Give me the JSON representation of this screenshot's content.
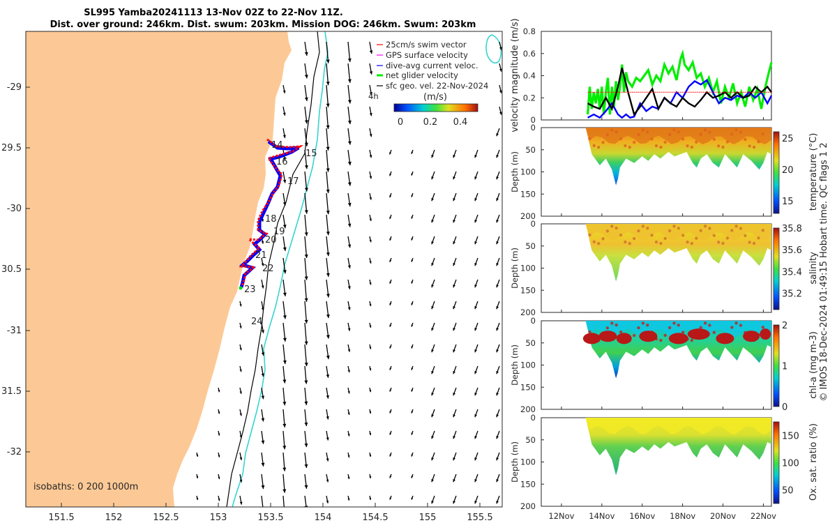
{
  "title_line1": "SL995 Yamba20241113 13-Nov 02Z to 22-Nov 11Z.",
  "title_line2": "Dist. over ground: 246km. Dist. swum: 203km. Mission DOG: 246km. Swum: 203km",
  "side_text": "© IMOS 18-Dec-2024 01:49:15 Hobart time. QC flags 1  2",
  "map": {
    "lon_ticks": [
      "151.5",
      "152",
      "152.5",
      "153",
      "153.5",
      "154",
      "154.5",
      "155",
      "155.5"
    ],
    "lat_ticks": [
      "-29",
      "29.5",
      "-30",
      "30.5",
      "-31",
      "31.5",
      "-32"
    ],
    "isobaths_label": "isobaths: 0   200  1000m",
    "day_labels": [
      "14",
      "15",
      "16",
      "17",
      "18",
      "19",
      "20",
      "21",
      "22",
      "23",
      "24"
    ],
    "legend": {
      "swim": "25cm/s swim vector",
      "gps": "GPS surface velocity",
      "dive": "dive-avg current veloc.",
      "net": "net glider velocity",
      "sfc": "sfc geo. vel. 22-Nov-2024",
      "sfc_extra": "4h"
    },
    "colorbar": {
      "label": "(m/s)",
      "ticks": [
        "0",
        "0.2",
        "0.4"
      ]
    },
    "colors": {
      "land": "#fcc996",
      "contour0": "#000000",
      "contour1000": "#35d4d2",
      "track_red": "#ff0000",
      "track_blue": "#0000ff",
      "track_green": "#00cc00"
    }
  },
  "chart_data": [
    {
      "type": "line",
      "name": "velocity",
      "ylabel": "velocity magnitude (m/s)",
      "ylim": [
        0,
        0.8
      ],
      "yticks": [
        "0",
        "0.2",
        "0.4",
        "0.6",
        "0.8"
      ],
      "xlim": [
        11.0,
        22.4
      ],
      "series": [
        {
          "name": "net glider velocity",
          "color": "#00ee00",
          "x": [
            13.3,
            13.4,
            13.5,
            13.6,
            13.7,
            13.8,
            13.9,
            14.0,
            14.1,
            14.2,
            14.3,
            14.4,
            14.5,
            14.6,
            14.7,
            14.8,
            14.9,
            15.0,
            15.1,
            15.2,
            15.3,
            15.5,
            15.7,
            15.9,
            16.1,
            16.3,
            16.5,
            16.7,
            16.9,
            17.1,
            17.3,
            17.5,
            17.7,
            17.9,
            18.0,
            18.1,
            18.3,
            18.5,
            18.7,
            18.9,
            19.1,
            19.3,
            19.5,
            19.7,
            19.9,
            20.1,
            20.3,
            20.5,
            20.7,
            20.9,
            21.1,
            21.3,
            21.5,
            21.7,
            21.9,
            22.1,
            22.3,
            22.4
          ],
          "y": [
            0.05,
            0.3,
            0.1,
            0.25,
            0.15,
            0.28,
            0.1,
            0.3,
            0.05,
            0.25,
            0.38,
            0.05,
            0.3,
            0.12,
            0.35,
            0.18,
            0.3,
            0.5,
            0.25,
            0.43,
            0.35,
            0.3,
            0.38,
            0.35,
            0.4,
            0.45,
            0.32,
            0.4,
            0.35,
            0.5,
            0.42,
            0.48,
            0.36,
            0.55,
            0.6,
            0.5,
            0.45,
            0.52,
            0.38,
            0.42,
            0.3,
            0.38,
            0.25,
            0.35,
            0.15,
            0.3,
            0.2,
            0.33,
            0.15,
            0.25,
            0.12,
            0.3,
            0.18,
            0.28,
            0.1,
            0.3,
            0.45,
            0.52
          ]
        },
        {
          "name": "dive-avg current veloc.",
          "color": "#0000ff",
          "x": [
            13.3,
            13.6,
            13.9,
            14.2,
            14.5,
            14.8,
            15.0,
            15.2,
            15.4,
            15.6,
            15.9,
            16.2,
            16.5,
            16.8,
            17.1,
            17.4,
            17.7,
            18.0,
            18.3,
            18.6,
            18.9,
            19.2,
            19.5,
            19.8,
            20.1,
            20.4,
            20.7,
            21.0,
            21.3,
            21.6,
            21.9,
            22.2,
            22.4
          ],
          "y": [
            0.02,
            0.05,
            0.02,
            0.08,
            0.15,
            0.05,
            0.02,
            0.05,
            0.02,
            0.03,
            0.15,
            0.08,
            0.12,
            0.1,
            0.2,
            0.15,
            0.25,
            0.2,
            0.3,
            0.35,
            0.32,
            0.36,
            0.25,
            0.15,
            0.2,
            0.18,
            0.22,
            0.2,
            0.25,
            0.2,
            0.25,
            0.15,
            0.22
          ]
        },
        {
          "name": "speed",
          "color": "#000000",
          "x": [
            13.3,
            13.6,
            13.9,
            14.2,
            14.5,
            14.8,
            15.0,
            15.3,
            15.6,
            15.9,
            16.2,
            16.5,
            16.8,
            17.1,
            17.4,
            17.7,
            18.0,
            18.3,
            18.6,
            18.9,
            19.2,
            19.5,
            19.8,
            20.1,
            20.4,
            20.7,
            21.0,
            21.3,
            21.6,
            21.9,
            22.2,
            22.4
          ],
          "y": [
            0.15,
            0.12,
            0.1,
            0.2,
            0.1,
            0.3,
            0.47,
            0.25,
            0.05,
            0.12,
            0.2,
            0.28,
            0.1,
            0.2,
            0.15,
            0.12,
            0.2,
            0.15,
            0.12,
            0.18,
            0.25,
            0.2,
            0.22,
            0.25,
            0.2,
            0.25,
            0.2,
            0.22,
            0.3,
            0.25,
            0.3,
            0.25
          ]
        },
        {
          "name": "swim",
          "color": "#ff0000",
          "x": [
            13.3,
            22.4
          ],
          "y": [
            0.25,
            0.25
          ]
        }
      ]
    },
    {
      "type": "heatmap",
      "name": "temperature",
      "ylabel": "Depth (m)",
      "cbar_label": "temperature (°C)",
      "yticks": [
        "0",
        "50",
        "100",
        "150",
        "200"
      ],
      "cbar_ticks": [
        "15",
        "20",
        "25"
      ],
      "clim": [
        13,
        26
      ],
      "profile_depth_x": [
        13.2,
        13.5,
        13.9,
        14.2,
        14.5,
        14.7,
        14.8,
        14.9,
        15.2,
        15.6,
        16.0,
        16.3,
        16.6,
        16.9,
        17.3,
        17.6,
        17.9,
        18.2,
        18.5,
        18.7,
        18.9,
        19.2,
        19.5,
        19.8,
        20.1,
        20.4,
        20.7,
        21.0,
        21.4,
        21.8,
        22.0,
        22.2,
        22.4
      ],
      "profile_depth_y": [
        0,
        60,
        85,
        70,
        95,
        130,
        115,
        90,
        70,
        80,
        65,
        75,
        60,
        70,
        55,
        65,
        60,
        55,
        80,
        90,
        70,
        60,
        80,
        90,
        60,
        75,
        90,
        60,
        75,
        95,
        80,
        55,
        60
      ]
    },
    {
      "type": "heatmap",
      "name": "salinity",
      "ylabel": "Depth (m)",
      "cbar_label": "salinity",
      "yticks": [
        "0",
        "50",
        "100",
        "150",
        "200"
      ],
      "cbar_ticks": [
        "35.2",
        "35.4",
        "35.6",
        "35.8"
      ],
      "clim": [
        35.05,
        35.8
      ]
    },
    {
      "type": "heatmap",
      "name": "chlorophyll",
      "ylabel": "Depth (m)",
      "cbar_label": "chl-a (mg m-3)",
      "yticks": [
        "0",
        "50",
        "100",
        "150",
        "200"
      ],
      "cbar_ticks": [
        "0",
        "1",
        "2"
      ],
      "clim": [
        0,
        2
      ]
    },
    {
      "type": "heatmap",
      "name": "oxygen",
      "ylabel": "Depth (m)",
      "cbar_label": "Ox. sat. ratio (%)",
      "yticks": [
        "0",
        "50",
        "100",
        "150",
        "200"
      ],
      "cbar_ticks": [
        "50",
        "100",
        "150"
      ],
      "clim": [
        25,
        175
      ]
    }
  ],
  "time_ticks": [
    "12Nov",
    "14Nov",
    "16Nov",
    "18Nov",
    "20Nov",
    "22Nov"
  ]
}
